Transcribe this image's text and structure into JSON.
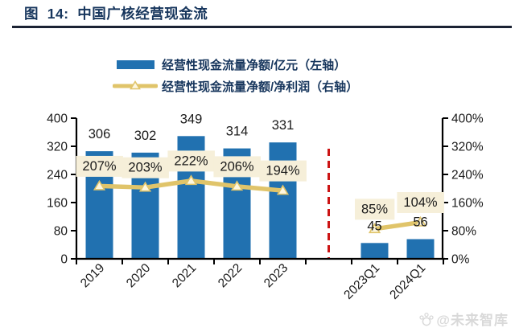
{
  "header": {
    "title": "图  14:  中国广核经营现金流"
  },
  "legend": {
    "items": [
      {
        "swatch": "bar-swatch",
        "label": "经营性现金流量净额/亿元（左轴）"
      },
      {
        "swatch": "line-swatch",
        "label": "经营性现金流量净额/净利润（右轴）"
      }
    ]
  },
  "watermark": {
    "icon": "paw-icon",
    "text": "@未来智库"
  },
  "colors": {
    "bar": "#2171b0",
    "line": "#e0c46a",
    "marker_fill": "#fdf7e0",
    "label_bg": "#f6efd9",
    "separator_red": "#cc1414",
    "navy": "#17365d",
    "axis": "#000000",
    "text": "#1a1a1a",
    "watermark": "#d9d9d9"
  },
  "chart_data": {
    "type": "combo bar+line",
    "title": "中国广核经营现金流",
    "categories": [
      "2019",
      "2020",
      "2021",
      "2022",
      "2023",
      "2023Q1",
      "2024Q1"
    ],
    "series": [
      {
        "name": "经营性现金流量净额/亿元（左轴）",
        "type": "bar",
        "axis": "left",
        "values": [
          306,
          302,
          349,
          314,
          331,
          45,
          56
        ],
        "labels": [
          "306",
          "302",
          "349",
          "314",
          "331",
          "45",
          "56"
        ]
      },
      {
        "name": "经营性现金流量净额/净利润（右轴）",
        "type": "line",
        "axis": "right",
        "values": [
          207,
          203,
          222,
          206,
          194,
          85,
          104
        ],
        "labels": [
          "207%",
          "203%",
          "222%",
          "206%",
          "194%",
          "85%",
          "104%"
        ]
      }
    ],
    "left_axis": {
      "min": 0,
      "max": 400,
      "tick_step": 80,
      "tick_labels": [
        "0",
        "80",
        "160",
        "240",
        "320",
        "400"
      ]
    },
    "right_axis": {
      "min": 0,
      "max": 400,
      "tick_step": 80,
      "tick_labels": [
        "0%",
        "80%",
        "160%",
        "240%",
        "320%",
        "400%"
      ]
    },
    "line_gap_after_index": 4,
    "separator": {
      "type": "vertical-dashed-line",
      "between": [
        "2023",
        "2023Q1"
      ]
    },
    "grid": "off",
    "legend_position": "top-center"
  }
}
